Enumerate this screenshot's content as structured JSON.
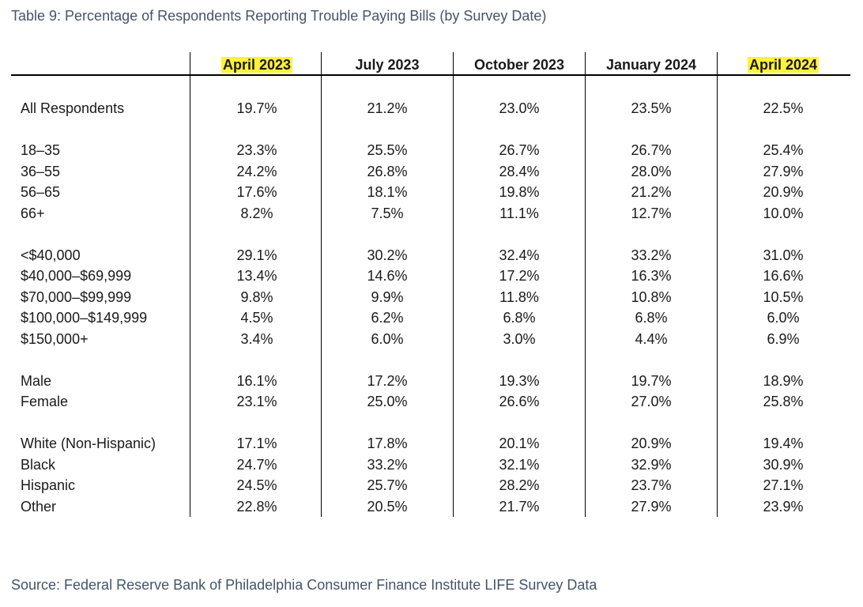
{
  "caption": "Table 9: Percentage of Respondents Reporting Trouble Paying Bills (by Survey Date)",
  "source": "Source: Federal Reserve Bank of Philadelphia Consumer Finance Institute LIFE Survey Data",
  "highlight_color": "#fff23a",
  "caption_color": "#44546a",
  "columns": [
    {
      "label": "April 2023",
      "highlighted": true
    },
    {
      "label": "July 2023",
      "highlighted": false
    },
    {
      "label": "October 2023",
      "highlighted": false
    },
    {
      "label": "January 2024",
      "highlighted": false
    },
    {
      "label": "April 2024",
      "highlighted": true
    }
  ],
  "groups": [
    {
      "rows": [
        {
          "label": "All Respondents",
          "values": [
            "19.7%",
            "21.2%",
            "23.0%",
            "23.5%",
            "22.5%"
          ]
        }
      ]
    },
    {
      "rows": [
        {
          "label": "18–35",
          "values": [
            "23.3%",
            "25.5%",
            "26.7%",
            "26.7%",
            "25.4%"
          ]
        },
        {
          "label": "36–55",
          "values": [
            "24.2%",
            "26.8%",
            "28.4%",
            "28.0%",
            "27.9%"
          ]
        },
        {
          "label": "56–65",
          "values": [
            "17.6%",
            "18.1%",
            "19.8%",
            "21.2%",
            "20.9%"
          ]
        },
        {
          "label": "66+",
          "values": [
            "8.2%",
            "7.5%",
            "11.1%",
            "12.7%",
            "10.0%"
          ]
        }
      ]
    },
    {
      "rows": [
        {
          "label": "<$40,000",
          "values": [
            "29.1%",
            "30.2%",
            "32.4%",
            "33.2%",
            "31.0%"
          ]
        },
        {
          "label": "$40,000–$69,999",
          "values": [
            "13.4%",
            "14.6%",
            "17.2%",
            "16.3%",
            "16.6%"
          ]
        },
        {
          "label": "$70,000–$99,999",
          "values": [
            "9.8%",
            "9.9%",
            "11.8%",
            "10.8%",
            "10.5%"
          ]
        },
        {
          "label": "$100,000–$149,999",
          "values": [
            "4.5%",
            "6.2%",
            "6.8%",
            "6.8%",
            "6.0%"
          ]
        },
        {
          "label": "$150,000+",
          "values": [
            "3.4%",
            "6.0%",
            "3.0%",
            "4.4%",
            "6.9%"
          ]
        }
      ]
    },
    {
      "rows": [
        {
          "label": "Male",
          "values": [
            "16.1%",
            "17.2%",
            "19.3%",
            "19.7%",
            "18.9%"
          ]
        },
        {
          "label": "Female",
          "values": [
            "23.1%",
            "25.0%",
            "26.6%",
            "27.0%",
            "25.8%"
          ]
        }
      ]
    },
    {
      "rows": [
        {
          "label": "White (Non-Hispanic)",
          "values": [
            "17.1%",
            "17.8%",
            "20.1%",
            "20.9%",
            "19.4%"
          ]
        },
        {
          "label": "Black",
          "values": [
            "24.7%",
            "33.2%",
            "32.1%",
            "32.9%",
            "30.9%"
          ]
        },
        {
          "label": "Hispanic",
          "values": [
            "24.5%",
            "25.7%",
            "28.2%",
            "23.7%",
            "27.1%"
          ]
        },
        {
          "label": "Other",
          "values": [
            "22.8%",
            "20.5%",
            "21.7%",
            "27.9%",
            "23.9%"
          ]
        }
      ]
    }
  ]
}
